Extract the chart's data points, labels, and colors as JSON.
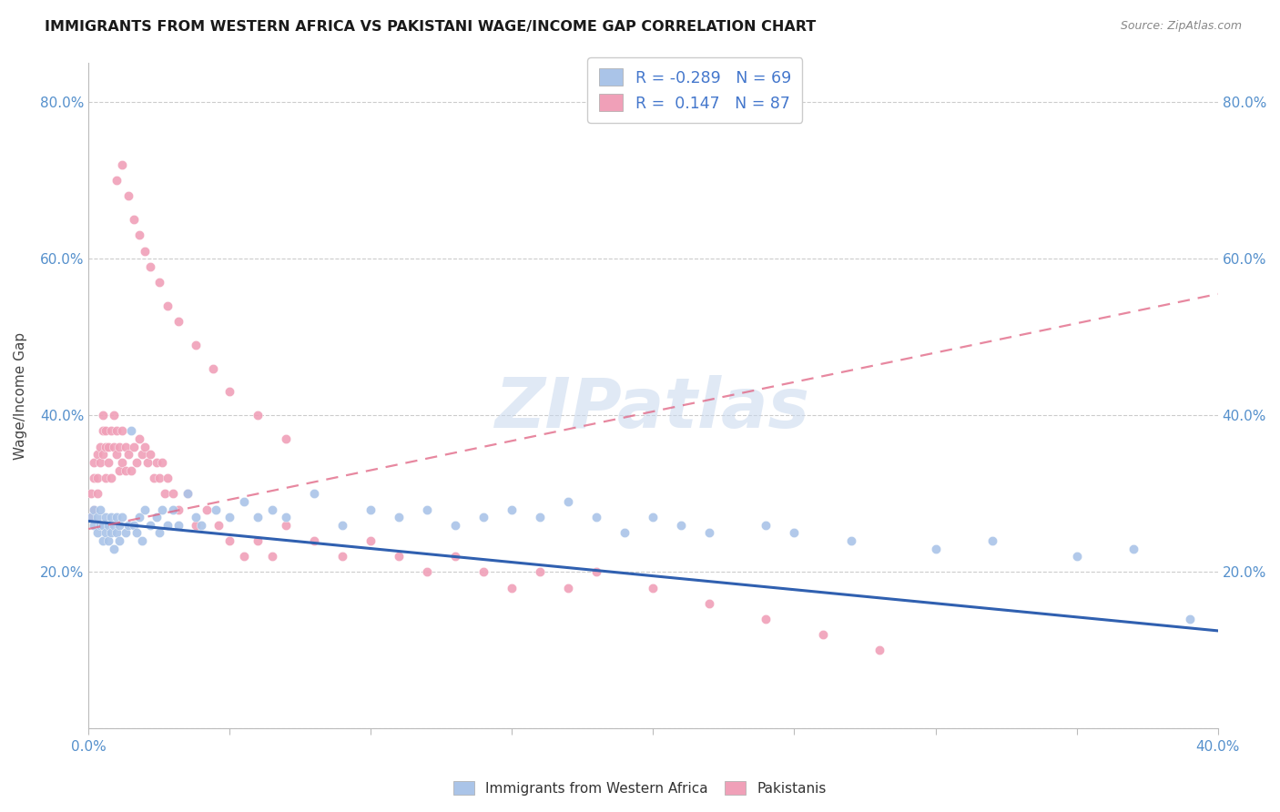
{
  "title": "IMMIGRANTS FROM WESTERN AFRICA VS PAKISTANI WAGE/INCOME GAP CORRELATION CHART",
  "source": "Source: ZipAtlas.com",
  "ylabel": "Wage/Income Gap",
  "xlim": [
    0.0,
    0.4
  ],
  "ylim": [
    0.0,
    0.85
  ],
  "color_blue": "#aac4e8",
  "color_pink": "#f0a0b8",
  "line_blue": "#3060b0",
  "line_pink": "#e06080",
  "legend_R1": "-0.289",
  "legend_N1": "69",
  "legend_R2": " 0.147",
  "legend_N2": "87",
  "legend_label1": "Immigrants from Western Africa",
  "legend_label2": "Pakistanis",
  "watermark": "ZIPatlas",
  "blue_scatter_x": [
    0.001,
    0.002,
    0.002,
    0.003,
    0.003,
    0.004,
    0.004,
    0.005,
    0.005,
    0.006,
    0.006,
    0.007,
    0.007,
    0.008,
    0.008,
    0.009,
    0.009,
    0.01,
    0.01,
    0.011,
    0.011,
    0.012,
    0.013,
    0.014,
    0.015,
    0.016,
    0.017,
    0.018,
    0.019,
    0.02,
    0.022,
    0.024,
    0.025,
    0.026,
    0.028,
    0.03,
    0.032,
    0.035,
    0.038,
    0.04,
    0.045,
    0.05,
    0.055,
    0.06,
    0.065,
    0.07,
    0.08,
    0.09,
    0.1,
    0.11,
    0.12,
    0.13,
    0.14,
    0.15,
    0.16,
    0.17,
    0.18,
    0.19,
    0.2,
    0.21,
    0.22,
    0.24,
    0.25,
    0.27,
    0.3,
    0.32,
    0.35,
    0.37,
    0.39
  ],
  "blue_scatter_y": [
    0.27,
    0.26,
    0.28,
    0.25,
    0.27,
    0.26,
    0.28,
    0.24,
    0.26,
    0.25,
    0.27,
    0.24,
    0.26,
    0.25,
    0.27,
    0.23,
    0.26,
    0.25,
    0.27,
    0.24,
    0.26,
    0.27,
    0.25,
    0.26,
    0.38,
    0.26,
    0.25,
    0.27,
    0.24,
    0.28,
    0.26,
    0.27,
    0.25,
    0.28,
    0.26,
    0.28,
    0.26,
    0.3,
    0.27,
    0.26,
    0.28,
    0.27,
    0.29,
    0.27,
    0.28,
    0.27,
    0.3,
    0.26,
    0.28,
    0.27,
    0.28,
    0.26,
    0.27,
    0.28,
    0.27,
    0.29,
    0.27,
    0.25,
    0.27,
    0.26,
    0.25,
    0.26,
    0.25,
    0.24,
    0.23,
    0.24,
    0.22,
    0.23,
    0.14
  ],
  "pink_scatter_x": [
    0.001,
    0.001,
    0.002,
    0.002,
    0.002,
    0.003,
    0.003,
    0.003,
    0.004,
    0.004,
    0.005,
    0.005,
    0.005,
    0.006,
    0.006,
    0.006,
    0.007,
    0.007,
    0.008,
    0.008,
    0.009,
    0.009,
    0.01,
    0.01,
    0.011,
    0.011,
    0.012,
    0.012,
    0.013,
    0.013,
    0.014,
    0.015,
    0.016,
    0.017,
    0.018,
    0.019,
    0.02,
    0.021,
    0.022,
    0.023,
    0.024,
    0.025,
    0.026,
    0.027,
    0.028,
    0.03,
    0.032,
    0.035,
    0.038,
    0.042,
    0.046,
    0.05,
    0.055,
    0.06,
    0.065,
    0.07,
    0.08,
    0.09,
    0.1,
    0.11,
    0.12,
    0.13,
    0.14,
    0.15,
    0.16,
    0.17,
    0.18,
    0.2,
    0.22,
    0.24,
    0.26,
    0.28,
    0.01,
    0.012,
    0.014,
    0.016,
    0.018,
    0.02,
    0.022,
    0.025,
    0.028,
    0.032,
    0.038,
    0.044,
    0.05,
    0.06,
    0.07
  ],
  "pink_scatter_y": [
    0.3,
    0.27,
    0.32,
    0.28,
    0.34,
    0.3,
    0.35,
    0.32,
    0.36,
    0.34,
    0.38,
    0.35,
    0.4,
    0.36,
    0.38,
    0.32,
    0.36,
    0.34,
    0.38,
    0.32,
    0.4,
    0.36,
    0.38,
    0.35,
    0.36,
    0.33,
    0.38,
    0.34,
    0.36,
    0.33,
    0.35,
    0.33,
    0.36,
    0.34,
    0.37,
    0.35,
    0.36,
    0.34,
    0.35,
    0.32,
    0.34,
    0.32,
    0.34,
    0.3,
    0.32,
    0.3,
    0.28,
    0.3,
    0.26,
    0.28,
    0.26,
    0.24,
    0.22,
    0.24,
    0.22,
    0.26,
    0.24,
    0.22,
    0.24,
    0.22,
    0.2,
    0.22,
    0.2,
    0.18,
    0.2,
    0.18,
    0.2,
    0.18,
    0.16,
    0.14,
    0.12,
    0.1,
    0.7,
    0.72,
    0.68,
    0.65,
    0.63,
    0.61,
    0.59,
    0.57,
    0.54,
    0.52,
    0.49,
    0.46,
    0.43,
    0.4,
    0.37
  ]
}
